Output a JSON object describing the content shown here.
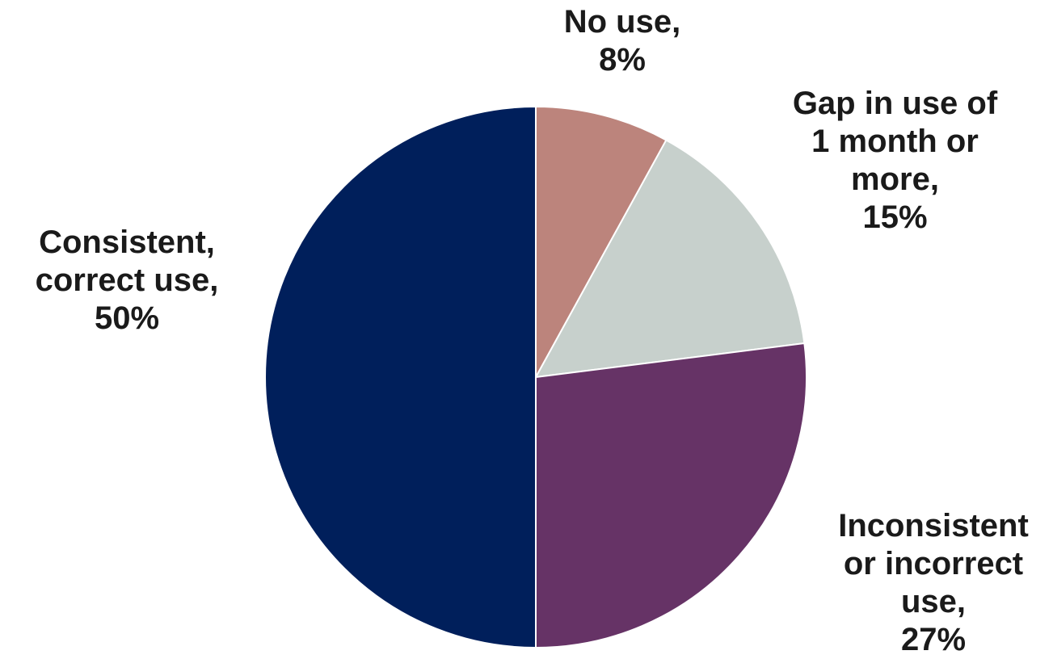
{
  "chart_data": {
    "type": "pie",
    "categories": [
      "No use",
      "Gap in use of 1 month or more",
      "Inconsistent or incorrect use",
      "Consistent, correct use"
    ],
    "values": [
      8,
      15,
      27,
      50
    ],
    "unit": "%",
    "start_angle": "12 o'clock",
    "direction": "clockwise",
    "colors": [
      "#BC847C",
      "#C7D0CC",
      "#663366",
      "#001F5B"
    ],
    "labels": [
      {
        "lines": [
          "No use,",
          "8%"
        ]
      },
      {
        "lines": [
          "Gap in use of",
          "1 month or",
          "more,",
          "15%"
        ]
      },
      {
        "lines": [
          "Inconsistent",
          "or incorrect",
          "use,",
          "27%"
        ]
      },
      {
        "lines": [
          "Consistent,",
          "correct use,",
          "50%"
        ]
      }
    ]
  }
}
